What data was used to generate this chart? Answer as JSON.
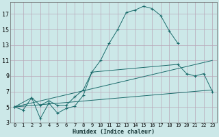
{
  "title": "",
  "xlabel": "Humidex (Indice chaleur)",
  "xlim": [
    -0.5,
    23.5
  ],
  "ylim": [
    3,
    18.5
  ],
  "xticks": [
    0,
    1,
    2,
    3,
    4,
    5,
    6,
    7,
    8,
    9,
    10,
    11,
    12,
    13,
    14,
    15,
    16,
    17,
    18,
    19,
    20,
    21,
    22,
    23
  ],
  "yticks": [
    3,
    5,
    7,
    9,
    11,
    13,
    15,
    17
  ],
  "bg_color": "#cce8e8",
  "grid_color": "#b8a8b8",
  "line_color": "#1a6b6b",
  "lines": [
    {
      "x": [
        0,
        1,
        2,
        3,
        4,
        5,
        6,
        7,
        8,
        9,
        10,
        11,
        12,
        13,
        14,
        15,
        16,
        17,
        18,
        19
      ],
      "y": [
        5,
        4.6,
        6.2,
        3.5,
        5.5,
        4.2,
        4.8,
        5.1,
        6.5,
        9.5,
        11.0,
        13.2,
        15.0,
        17.2,
        17.5,
        18.0,
        17.7,
        16.8,
        14.8,
        13.2
      ],
      "has_markers": true
    },
    {
      "x": [
        0,
        2,
        3,
        4,
        5,
        6,
        7,
        8,
        9,
        19,
        20,
        21,
        22,
        23
      ],
      "y": [
        5,
        6.2,
        5.2,
        5.8,
        5.2,
        5.2,
        6.3,
        7.2,
        9.5,
        10.5,
        9.3,
        9.0,
        9.3,
        7.0
      ],
      "has_markers": true
    },
    {
      "x": [
        0,
        23
      ],
      "y": [
        5,
        7.2
      ],
      "has_markers": false
    },
    {
      "x": [
        0,
        23
      ],
      "y": [
        5,
        11.0
      ],
      "has_markers": false
    }
  ]
}
